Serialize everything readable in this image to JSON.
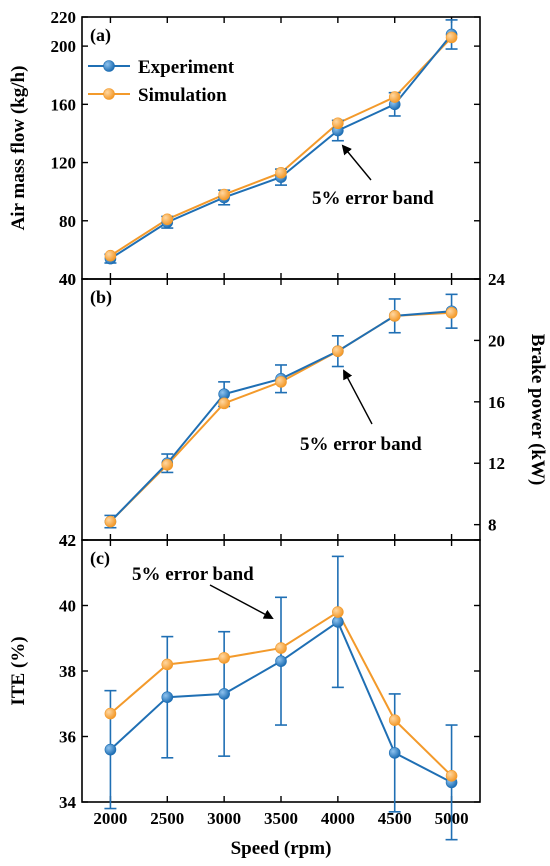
{
  "colors": {
    "experiment": "#1f6fb4",
    "simulation": "#f39a2b",
    "axis": "#000000"
  },
  "legend": {
    "experiment": "Experiment",
    "simulation": "Simulation",
    "placement": "top-left"
  },
  "annotation": "5% error band",
  "xlabel": "Speed (rpm)",
  "chart_data": [
    {
      "type": "line",
      "panel": "(a)",
      "x": [
        2000,
        2500,
        3000,
        3500,
        4000,
        4500,
        5000
      ],
      "xlim": [
        1750,
        5250
      ],
      "xticks": [
        "2000",
        "2500",
        "3000",
        "3500",
        "4000",
        "4500",
        "5000"
      ],
      "ylabel": "Air mass flow (kg/h)",
      "ylim": [
        40,
        220
      ],
      "yticks": [
        "40",
        "80",
        "120",
        "160",
        "200",
        "220"
      ],
      "series": [
        {
          "name": "Experiment",
          "values": [
            54,
            79,
            96,
            110,
            142,
            160,
            208
          ],
          "error": [
            3,
            4,
            5,
            5.5,
            7,
            8,
            10
          ]
        },
        {
          "name": "Simulation",
          "values": [
            56,
            81,
            98,
            113,
            147,
            165,
            206
          ]
        }
      ],
      "annotation": "5% error band",
      "legend": "top-left",
      "grid": false
    },
    {
      "type": "line",
      "panel": "(b)",
      "x": [
        2000,
        2500,
        3000,
        3500,
        4000,
        4500,
        5000
      ],
      "xlim": [
        1750,
        5250
      ],
      "ylabel_right": "Brake power (kW)",
      "ylim": [
        7,
        24
      ],
      "yticks": [
        "8",
        "12",
        "16",
        "20",
        "24"
      ],
      "left_labels": [
        "40",
        "42"
      ],
      "series": [
        {
          "name": "Experiment",
          "values": [
            8.2,
            12.0,
            16.5,
            17.5,
            19.3,
            21.6,
            21.9
          ],
          "error": [
            0.4,
            0.6,
            0.8,
            0.9,
            1.0,
            1.1,
            1.1
          ]
        },
        {
          "name": "Simulation",
          "values": [
            8.2,
            11.9,
            15.9,
            17.3,
            19.3,
            21.6,
            21.8
          ]
        }
      ],
      "annotation": "5% error band",
      "grid": false
    },
    {
      "type": "line",
      "panel": "(c)",
      "x": [
        2000,
        2500,
        3000,
        3500,
        4000,
        4500,
        5000
      ],
      "xlim": [
        1750,
        5250
      ],
      "xticks": [
        "2000",
        "2500",
        "3000",
        "3500",
        "4000",
        "4500",
        "5000"
      ],
      "xlabel": "Speed (rpm)",
      "ylabel": "ITE (%)",
      "ylim": [
        34,
        42
      ],
      "yticks": [
        "34",
        "36",
        "38",
        "40",
        "42"
      ],
      "series": [
        {
          "name": "Experiment",
          "values": [
            35.6,
            37.2,
            37.3,
            38.3,
            39.5,
            35.5,
            34.6
          ],
          "error": [
            1.8,
            1.85,
            1.9,
            1.95,
            2.0,
            1.8,
            1.75
          ]
        },
        {
          "name": "Simulation",
          "values": [
            36.7,
            38.2,
            38.4,
            38.7,
            39.8,
            36.5,
            34.8
          ]
        }
      ],
      "annotation": "5% error band",
      "grid": false
    }
  ]
}
